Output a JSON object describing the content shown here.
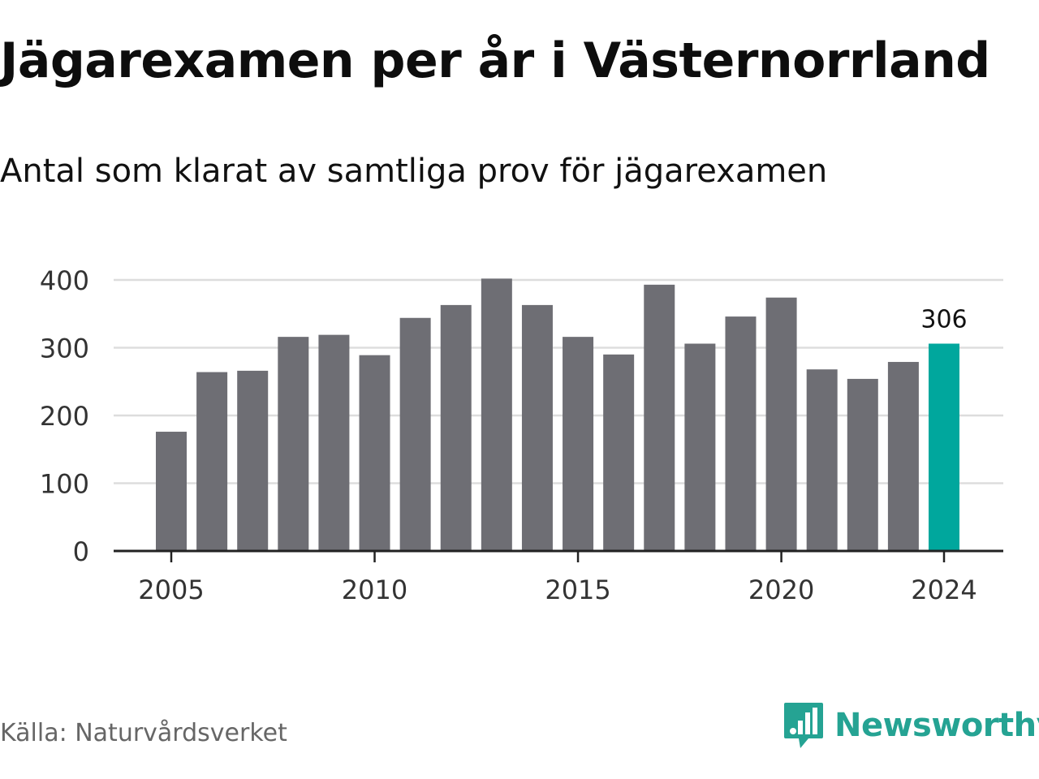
{
  "title": "Jägarexamen per år i Västernorrland",
  "subtitle": "Antal som klarat av samtliga prov för jägarexamen",
  "source": "Källa: Naturvårdsverket",
  "brand": "Newsworthy",
  "colors": {
    "bar": "#6e6e74",
    "highlight": "#00a79d",
    "brand": "#25a393",
    "grid": "#dddddd",
    "axis": "#222222"
  },
  "chart_data": {
    "type": "bar",
    "categories": [
      2005,
      2006,
      2007,
      2008,
      2009,
      2010,
      2011,
      2012,
      2013,
      2014,
      2015,
      2016,
      2017,
      2018,
      2019,
      2020,
      2021,
      2022,
      2023,
      2024
    ],
    "values": [
      176,
      264,
      266,
      316,
      319,
      289,
      344,
      363,
      402,
      363,
      316,
      290,
      393,
      306,
      346,
      374,
      268,
      254,
      279,
      306
    ],
    "highlight_index": 19,
    "highlight_label": "306",
    "x_ticks": [
      "2005",
      "2010",
      "2015",
      "2020",
      "2024"
    ],
    "y_ticks": [
      "0",
      "100",
      "200",
      "300",
      "400"
    ],
    "ylim": [
      0,
      400
    ],
    "grid": true
  }
}
